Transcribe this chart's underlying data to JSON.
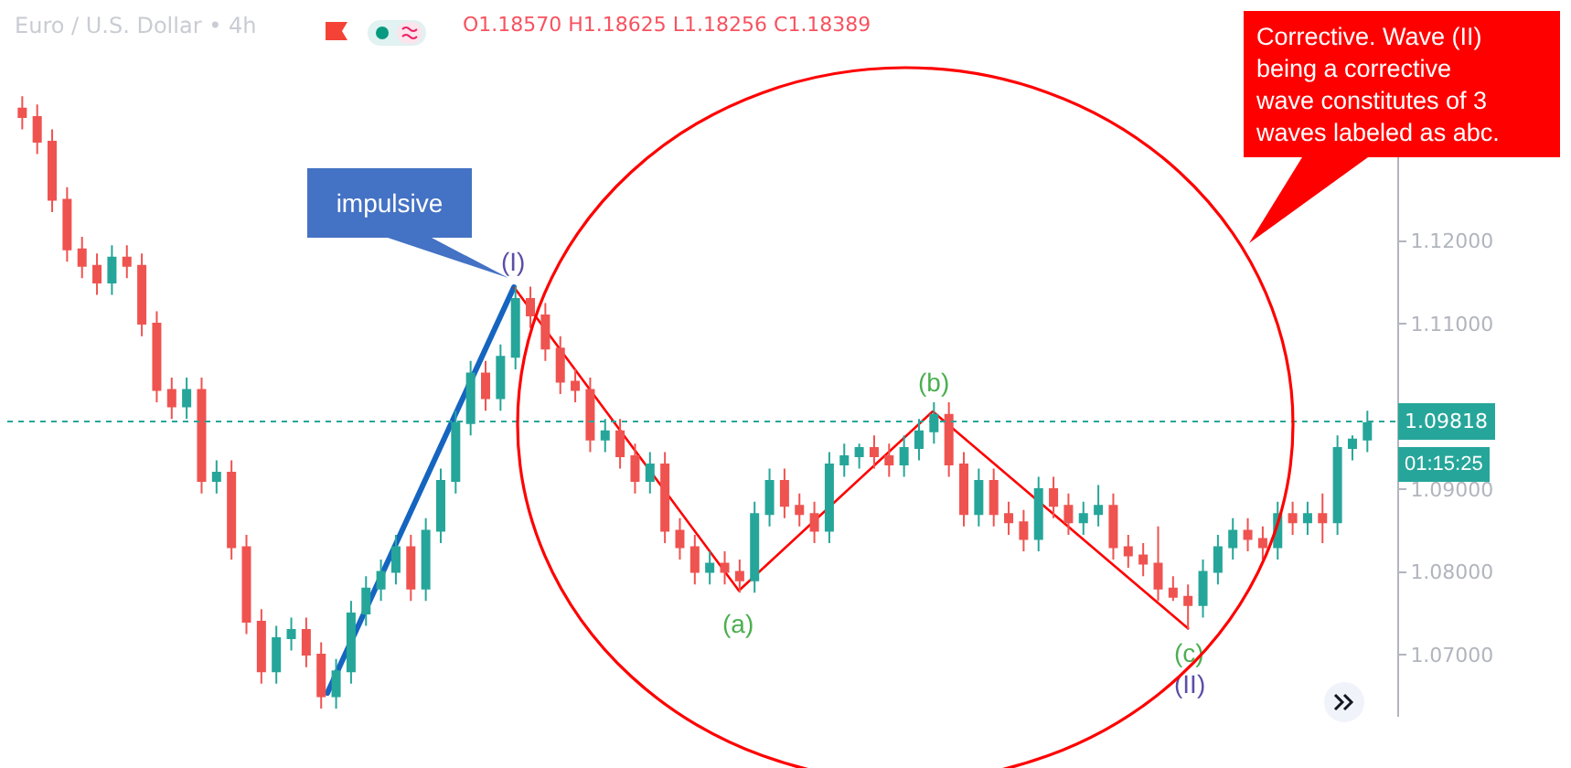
{
  "chart_data": {
    "type": "candlestick",
    "title": "Euro / U.S. Dollar • 4h",
    "subtitle": "O1.18570 H1.18625 L1.18256 C1.18389",
    "categories": [
      null,
      null,
      null,
      null,
      null,
      null,
      null,
      null,
      null,
      null,
      null,
      null,
      null,
      null,
      null,
      null,
      null,
      null,
      null,
      null,
      null,
      null,
      null,
      null,
      null,
      null,
      null,
      null,
      null,
      null,
      null,
      null,
      null,
      null,
      null,
      null,
      null,
      null,
      null,
      null,
      null,
      null,
      null,
      null,
      null,
      null,
      null,
      null,
      null,
      null,
      null,
      null,
      null,
      null,
      null,
      null,
      null,
      null,
      null,
      null,
      null,
      null,
      null,
      null,
      null,
      null,
      null,
      null,
      null,
      null,
      null,
      null,
      null,
      null,
      null,
      null,
      null,
      null,
      null,
      null,
      null,
      null,
      null,
      null,
      null,
      null,
      null,
      null,
      null,
      null,
      null
    ],
    "ohlc": [
      [
        1.136,
        1.1375,
        1.1335,
        1.135
      ],
      [
        1.135,
        1.1365,
        1.1305,
        1.132
      ],
      [
        1.132,
        1.1335,
        1.1235,
        1.125
      ],
      [
        1.125,
        1.1265,
        1.1175,
        1.119
      ],
      [
        1.119,
        1.1205,
        1.1155,
        1.117
      ],
      [
        1.117,
        1.1185,
        1.1135,
        1.115
      ],
      [
        1.115,
        1.1195,
        1.1135,
        1.118
      ],
      [
        1.118,
        1.1195,
        1.1155,
        1.117
      ],
      [
        1.117,
        1.1185,
        1.1085,
        1.11
      ],
      [
        1.11,
        1.1115,
        1.1005,
        1.102
      ],
      [
        1.102,
        1.1035,
        1.0985,
        1.1
      ],
      [
        1.1,
        1.1035,
        1.0985,
        1.102
      ],
      [
        1.102,
        1.1035,
        1.0895,
        1.091
      ],
      [
        1.091,
        1.0935,
        1.0895,
        1.092
      ],
      [
        1.092,
        1.0935,
        1.0815,
        1.083
      ],
      [
        1.083,
        1.0845,
        1.0725,
        1.074
      ],
      [
        1.074,
        1.0755,
        1.0665,
        1.068
      ],
      [
        1.068,
        1.0735,
        1.0665,
        1.072
      ],
      [
        1.072,
        1.0745,
        1.0705,
        1.073
      ],
      [
        1.073,
        1.0745,
        1.0685,
        1.07
      ],
      [
        1.07,
        1.0715,
        1.0635,
        1.065
      ],
      [
        1.065,
        1.0695,
        1.0635,
        1.068
      ],
      [
        1.068,
        1.0765,
        1.0665,
        1.075
      ],
      [
        1.075,
        1.0795,
        1.0735,
        1.078
      ],
      [
        1.078,
        1.0815,
        1.0765,
        1.08
      ],
      [
        1.08,
        1.0845,
        1.0785,
        1.083
      ],
      [
        1.083,
        1.0845,
        1.0765,
        1.078
      ],
      [
        1.078,
        1.0865,
        1.0765,
        1.085
      ],
      [
        1.085,
        1.0925,
        1.0835,
        1.091
      ],
      [
        1.091,
        1.0995,
        1.0895,
        1.098
      ],
      [
        1.098,
        1.1055,
        1.0965,
        1.104
      ],
      [
        1.104,
        1.1055,
        1.0995,
        1.101
      ],
      [
        1.101,
        1.1075,
        1.0995,
        1.106
      ],
      [
        1.106,
        1.1145,
        1.1045,
        1.113
      ],
      [
        1.113,
        1.1145,
        1.1095,
        1.111
      ],
      [
        1.111,
        1.1125,
        1.1055,
        1.107
      ],
      [
        1.107,
        1.1085,
        1.1015,
        1.103
      ],
      [
        1.103,
        1.1045,
        1.1005,
        1.102
      ],
      [
        1.102,
        1.1035,
        1.0945,
        1.096
      ],
      [
        1.096,
        1.0985,
        1.0945,
        1.097
      ],
      [
        1.097,
        1.0985,
        1.0925,
        1.094
      ],
      [
        1.094,
        1.0955,
        1.0895,
        1.091
      ],
      [
        1.091,
        1.0945,
        1.0895,
        1.093
      ],
      [
        1.093,
        1.0945,
        1.0835,
        1.085
      ],
      [
        1.085,
        1.0865,
        1.0815,
        1.083
      ],
      [
        1.083,
        1.0845,
        1.0785,
        1.08
      ],
      [
        1.08,
        1.0825,
        1.0785,
        1.081
      ],
      [
        1.081,
        1.0825,
        1.0785,
        1.08
      ],
      [
        1.08,
        1.0815,
        1.0775,
        1.079
      ],
      [
        1.079,
        1.0885,
        1.0775,
        1.087
      ],
      [
        1.087,
        1.0925,
        1.0855,
        1.091
      ],
      [
        1.091,
        1.0925,
        1.0865,
        1.088
      ],
      [
        1.088,
        1.0895,
        1.0855,
        1.087
      ],
      [
        1.087,
        1.0885,
        1.0835,
        1.085
      ],
      [
        1.085,
        1.0945,
        1.0835,
        1.093
      ],
      [
        1.093,
        1.0955,
        1.0915,
        1.094
      ],
      [
        1.094,
        1.0955,
        1.0925,
        1.095
      ],
      [
        1.095,
        1.0965,
        1.0925,
        1.094
      ],
      [
        1.094,
        1.0955,
        1.0915,
        1.093
      ],
      [
        1.093,
        1.0965,
        1.0915,
        1.095
      ],
      [
        1.095,
        1.0985,
        1.0935,
        1.097
      ],
      [
        1.097,
        1.1005,
        1.0955,
        1.099
      ],
      [
        1.099,
        1.1005,
        1.0915,
        1.093
      ],
      [
        1.093,
        1.0945,
        1.0855,
        1.087
      ],
      [
        1.087,
        1.0925,
        1.0855,
        1.091
      ],
      [
        1.091,
        1.0925,
        1.0855,
        1.087
      ],
      [
        1.087,
        1.0885,
        1.0845,
        1.086
      ],
      [
        1.086,
        1.0875,
        1.0825,
        1.084
      ],
      [
        1.084,
        1.0915,
        1.0825,
        1.09
      ],
      [
        1.09,
        1.0915,
        1.0865,
        1.088
      ],
      [
        1.088,
        1.0895,
        1.0845,
        1.086
      ],
      [
        1.086,
        1.0885,
        1.0845,
        1.087
      ],
      [
        1.087,
        1.0905,
        1.0855,
        1.088
      ],
      [
        1.088,
        1.0895,
        1.0815,
        1.083
      ],
      [
        1.083,
        1.0845,
        1.0805,
        1.082
      ],
      [
        1.082,
        1.0835,
        1.0795,
        1.081
      ],
      [
        1.081,
        1.0855,
        1.0765,
        1.078
      ],
      [
        1.078,
        1.0795,
        1.0765,
        1.077
      ],
      [
        1.077,
        1.0785,
        1.073,
        1.076
      ],
      [
        1.076,
        1.0815,
        1.0745,
        1.08
      ],
      [
        1.08,
        1.0845,
        1.0785,
        1.083
      ],
      [
        1.083,
        1.0865,
        1.0815,
        1.085
      ],
      [
        1.085,
        1.0865,
        1.0825,
        1.084
      ],
      [
        1.084,
        1.0855,
        1.0815,
        1.083
      ],
      [
        1.083,
        1.0885,
        1.0815,
        1.087
      ],
      [
        1.087,
        1.0885,
        1.0845,
        1.086
      ],
      [
        1.086,
        1.0885,
        1.0845,
        1.087
      ],
      [
        1.087,
        1.0895,
        1.0835,
        1.086
      ],
      [
        1.086,
        1.0965,
        1.0845,
        1.095
      ],
      [
        1.095,
        1.0965,
        1.0935,
        1.096
      ],
      [
        1.096,
        1.0995,
        1.0945,
        1.098
      ]
    ],
    "ylim": [
      1.0625,
      1.1425
    ],
    "yticks": [
      {
        "value": 1.07,
        "label": "1.07000"
      },
      {
        "value": 1.08,
        "label": "1.08000"
      },
      {
        "value": 1.09,
        "label": "1.09000"
      },
      {
        "value": 1.11,
        "label": "1.11000"
      },
      {
        "value": 1.12,
        "label": "1.12000"
      }
    ],
    "tick_labels": "y",
    "annotations": [
      "impulsive",
      "Corrective. Wave (II)\nbeing a corrective\nwave constitutes of 3\nwaves labeled as abc.",
      "(I)",
      "(a)",
      "(b)",
      "(c)",
      "(II)",
      "01:15:25"
    ],
    "ref_lines": [
      {
        "axis": "y",
        "value": 1.09818,
        "label": "1.09818",
        "color": "#26a69a",
        "line_style": "dotted"
      }
    ]
  }
}
